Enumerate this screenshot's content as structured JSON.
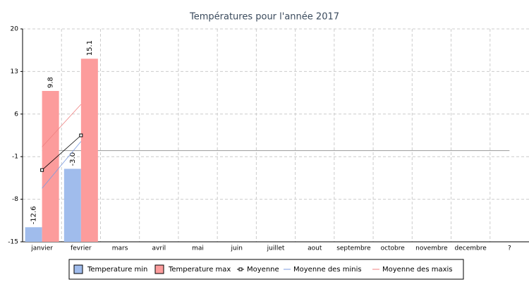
{
  "chart_data": {
    "type": "bar",
    "title": "Températures pour l'année 2017",
    "categories": [
      "janvier",
      "fevrier",
      "mars",
      "avril",
      "mai",
      "juin",
      "juillet",
      "aout",
      "septembre",
      "octobre",
      "novembre",
      "decembre",
      "?"
    ],
    "series": [
      {
        "name": "Temperature min",
        "kind": "bar",
        "color": "#a0bcec",
        "values": [
          -12.6,
          -3.0,
          null,
          null,
          null,
          null,
          null,
          null,
          null,
          null,
          null,
          null,
          null
        ],
        "value_labels": [
          "-12.6",
          "-3.0",
          null,
          null,
          null,
          null,
          null,
          null,
          null,
          null,
          null,
          null,
          null
        ]
      },
      {
        "name": "Temperature max",
        "kind": "bar",
        "color": "#fc9c9c",
        "values": [
          9.8,
          15.1,
          null,
          null,
          null,
          null,
          null,
          null,
          null,
          null,
          null,
          null,
          null
        ],
        "value_labels": [
          "9.8",
          "15.1",
          null,
          null,
          null,
          null,
          null,
          null,
          null,
          null,
          null,
          null,
          null
        ]
      },
      {
        "name": "Moyenne",
        "kind": "line",
        "marker": "square",
        "color": "#000000",
        "values": [
          -3.2,
          2.5,
          null,
          null,
          null,
          null,
          null,
          null,
          null,
          null,
          null,
          null,
          null
        ]
      },
      {
        "name": "Moyenne des minis",
        "kind": "line",
        "color": "#7c9ce0",
        "values": [
          -6.2,
          1.5,
          null,
          null,
          null,
          null,
          null,
          null,
          null,
          null,
          null,
          null,
          null
        ]
      },
      {
        "name": "Moyenne des maxis",
        "kind": "line",
        "color": "#f08080",
        "values": [
          0.6,
          7.6,
          null,
          null,
          null,
          null,
          null,
          null,
          null,
          null,
          null,
          null,
          null
        ]
      }
    ],
    "reference_line": {
      "value": 0,
      "color": "#999999"
    },
    "ylim": [
      -15,
      20
    ],
    "yticks": [
      -15,
      -8,
      -1,
      6,
      13,
      20
    ],
    "grid": true
  }
}
